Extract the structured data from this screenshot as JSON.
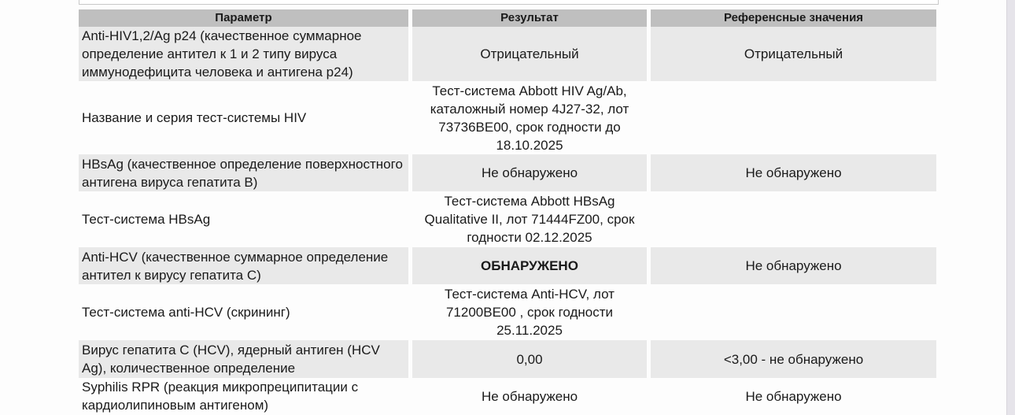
{
  "table": {
    "headers": [
      "Параметр",
      "Результат",
      "Референсные значения"
    ],
    "rows": [
      {
        "param": "Anti-HIV1,2/Ag p24 (качественное суммарное определение антител к 1 и 2 типу вируса иммунодефицита человека и антигена p24)",
        "result": "Отрицательный",
        "reference": "Отрицательный",
        "shaded": true
      },
      {
        "param": "Название и серия тест-системы HIV",
        "result": "Тест-система Abbott HIV Ag/Ab, каталожный номер 4J27-32, лот 73736BE00, срок годности до 18.10.2025",
        "reference": "",
        "shaded": false
      },
      {
        "param": "HBsAg (качественное определение поверхностного антигена вируса гепатита B)",
        "result": "Не обнаружено",
        "reference": "Не обнаружено",
        "shaded": true
      },
      {
        "param": "Тест-система HBsAg",
        "result": "Тест-система Abbott HBsAg Qualitative II, лот 71444FZ00, срок годности 02.12.2025",
        "reference": "",
        "shaded": false
      },
      {
        "param": "Anti-HCV (качественное суммарное определение антител к вирусу гепатита C)",
        "result": "ОБНАРУЖЕНО",
        "reference": "Не обнаружено",
        "shaded": true,
        "result_bold": true
      },
      {
        "param": "Тест-система anti-HCV (скрининг)",
        "result": "Тест-система Anti-HCV, лот 71200BE00 , срок годности 25.11.2025",
        "reference": "",
        "shaded": false
      },
      {
        "param": "Вирус гепатита C (HCV), ядерный антиген (HCV Ag), количественное определение",
        "result": "0,00",
        "reference": "<3,00 - не обнаружено",
        "shaded": true
      },
      {
        "param": "Syphilis RPR (реакция микропреципитации с кардиолипиновым антигеном)",
        "result": "Не обнаружено",
        "reference": "Не обнаружено",
        "shaded": false
      }
    ]
  },
  "colors": {
    "header_bg": "#bfbfbf",
    "shaded_row_bg": "#e9e9e9"
  }
}
